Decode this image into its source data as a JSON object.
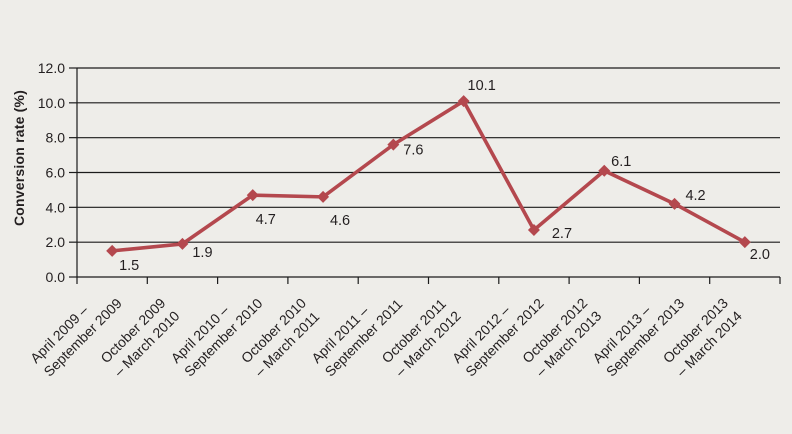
{
  "chart_data": {
    "type": "line",
    "title": "",
    "xlabel": "",
    "ylabel": "Conversion rate (%)",
    "categories": [
      [
        "April 2009 –",
        "September 2009"
      ],
      [
        "October 2009",
        "– March 2010"
      ],
      [
        "April 2010 –",
        "September 2010"
      ],
      [
        "October 2010",
        "– March 2011"
      ],
      [
        "April 2011 –",
        "September 2011"
      ],
      [
        "October 2011",
        "– March 2012"
      ],
      [
        "April 2012 –",
        "September 2012"
      ],
      [
        "October 2012",
        "– March 2013"
      ],
      [
        "April 2013 –",
        "September 2013"
      ],
      [
        "October 2013",
        "– March 2014"
      ]
    ],
    "values": [
      1.5,
      1.9,
      4.7,
      4.6,
      7.6,
      10.1,
      2.7,
      6.1,
      4.2,
      2.0
    ],
    "data_labels": [
      "1.5",
      "1.9",
      "4.7",
      "4.6",
      "7.6",
      "10.1",
      "2.7",
      "6.1",
      "4.2",
      "2.0"
    ],
    "ylim": [
      0,
      12
    ],
    "ytick_step": 2,
    "ytick_labels": [
      "0.0",
      "2.0",
      "4.0",
      "6.0",
      "8.0",
      "10.0",
      "12.0"
    ],
    "grid": true,
    "legend": "none",
    "marker_shape": "diamond",
    "colors": {
      "line": "#b4484e",
      "marker": "#b4484e",
      "text": "#231f20",
      "grid": "#1b1b1b",
      "axis": "#1b1b1b",
      "background": "#eeede9"
    }
  }
}
